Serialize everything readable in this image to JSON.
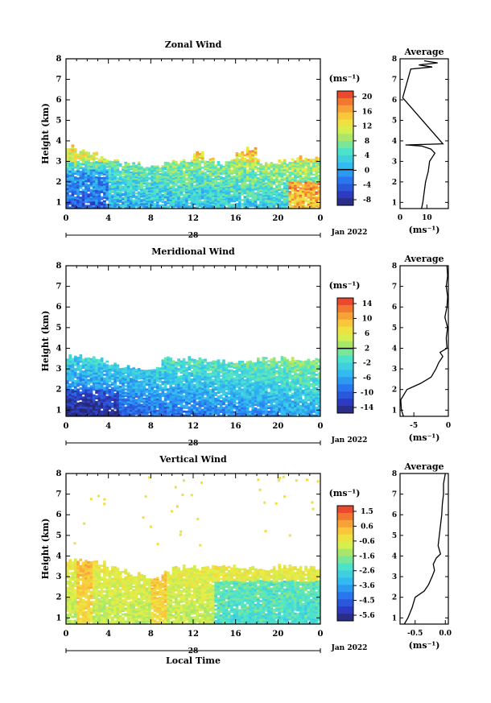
{
  "chart_data": [
    {
      "type": "heatmap",
      "title": "Zonal Wind",
      "ylabel": "Height (km)",
      "xlabel": "",
      "date_label": "Jan 2022",
      "day_label": "28",
      "xticks": [
        "0",
        "4",
        "8",
        "12",
        "16",
        "20",
        "0"
      ],
      "xlim": [
        0,
        24
      ],
      "ylim": [
        0.7,
        8
      ],
      "yticks": [
        "1",
        "2",
        "3",
        "4",
        "5",
        "6",
        "7",
        "8"
      ],
      "colorbar": {
        "unit": "(ms⁻¹)",
        "ticks": [
          "20",
          "16",
          "12",
          "8",
          "4",
          "0",
          "-4",
          "-8"
        ],
        "range": [
          -10,
          22
        ],
        "zero_line": 0
      },
      "field": {
        "cloud_top_profile_km": [
          3.7,
          3.5,
          3.4,
          3.2,
          3.0,
          2.9,
          2.9,
          2.8,
          2.8,
          2.9,
          3.0,
          3.0,
          3.4,
          3.1,
          2.9,
          3.0,
          3.4,
          3.6,
          3.0,
          3.0,
          3.0,
          3.1,
          3.2
        ],
        "value_min": -8,
        "value_max": 20
      },
      "average_profile": {
        "xticks": [
          "0",
          "10"
        ],
        "xlim": [
          0,
          18
        ],
        "xlabel": "(ms⁻¹)",
        "height_km": [
          0.7,
          1.0,
          1.5,
          2.0,
          2.5,
          3.0,
          3.2,
          3.4,
          3.6,
          3.75,
          3.8,
          3.85,
          6.1,
          7.5,
          7.6,
          7.7,
          7.8,
          7.9
        ],
        "speed": [
          8,
          8.5,
          9,
          9.5,
          10.5,
          11,
          12,
          13,
          11.5,
          8,
          2,
          16,
          1,
          4,
          12,
          7,
          14,
          9
        ]
      }
    },
    {
      "type": "heatmap",
      "title": "Meridional Wind",
      "ylabel": "Height (km)",
      "xlabel": "",
      "date_label": "Jan 2022",
      "day_label": "28",
      "xticks": [
        "0",
        "4",
        "8",
        "12",
        "16",
        "20",
        "0"
      ],
      "xlim": [
        0,
        24
      ],
      "ylim": [
        0.7,
        8
      ],
      "yticks": [
        "1",
        "2",
        "3",
        "4",
        "5",
        "6",
        "7",
        "8"
      ],
      "colorbar": {
        "unit": "(ms⁻¹)",
        "ticks": [
          "14",
          "10",
          "6",
          "2",
          "-2",
          "-6",
          "-10",
          "-14"
        ],
        "range": [
          -16,
          16
        ],
        "zero_line": 2
      },
      "field": {
        "cloud_top_profile_km": [
          3.6,
          3.6,
          3.5,
          3.5,
          3.3,
          3.1,
          3.0,
          2.9,
          3.1,
          3.5,
          3.4,
          3.5,
          3.5,
          3.4,
          3.4,
          3.3,
          3.3,
          3.3,
          3.5,
          3.5,
          3.5,
          3.5,
          3.5
        ],
        "value_min": -14,
        "value_max": 14
      },
      "average_profile": {
        "xticks": [
          "-5",
          "0"
        ],
        "xlim": [
          -7,
          0
        ],
        "xlabel": "(ms⁻¹)",
        "height_km": [
          0.7,
          1.0,
          1.5,
          2.0,
          2.3,
          2.6,
          3.0,
          3.3,
          3.6,
          3.8,
          4.0,
          4.5,
          5.0,
          5.5,
          6.0,
          6.5,
          7.0,
          7.5,
          8.0
        ],
        "speed": [
          -6.5,
          -6.8,
          -6.9,
          -6.0,
          -4.0,
          -2.5,
          -1.8,
          -1.4,
          -0.8,
          -1.2,
          -0.2,
          -0.3,
          -0.1,
          -0.5,
          -0.2,
          -0.1,
          -0.3,
          -0.1,
          -0.2
        ]
      }
    },
    {
      "type": "heatmap",
      "title": "Vertical Wind",
      "ylabel": "Height (km)",
      "xlabel": "Local Time",
      "date_label": "Jan 2022",
      "day_label": "28",
      "xticks": [
        "0",
        "4",
        "8",
        "12",
        "16",
        "20",
        "0"
      ],
      "xlim": [
        0,
        24
      ],
      "ylim": [
        0.7,
        8
      ],
      "yticks": [
        "1",
        "2",
        "3",
        "4",
        "5",
        "6",
        "7",
        "8"
      ],
      "colorbar": {
        "unit": "(ms⁻¹)",
        "ticks": [
          "1.5",
          "0.6",
          "-0.6",
          "-1.6",
          "-2.6",
          "-3.6",
          "-4.5",
          "-5.6"
        ],
        "range": [
          -6.0,
          2.0
        ],
        "zero_line": null
      },
      "field": {
        "cloud_top_profile_km": [
          3.8,
          3.8,
          3.8,
          3.7,
          3.4,
          3.3,
          3.1,
          3.0,
          2.9,
          3.2,
          3.4,
          3.5,
          3.5,
          3.5,
          3.5,
          3.5,
          3.5,
          3.4,
          3.4,
          3.4,
          3.5,
          3.5,
          3.4
        ],
        "value_min": -5.6,
        "value_max": 1.5
      },
      "average_profile": {
        "xticks": [
          "-0.5",
          "0.0"
        ],
        "xlim": [
          -0.75,
          0.05
        ],
        "xlabel": "(ms⁻¹)",
        "height_km": [
          0.7,
          1.0,
          1.5,
          2.0,
          2.3,
          2.6,
          3.0,
          3.3,
          3.6,
          3.9,
          4.1,
          4.5,
          5.0,
          5.5,
          6.0,
          6.5,
          7.0,
          7.5,
          8.0
        ],
        "speed": [
          -0.68,
          -0.62,
          -0.55,
          -0.5,
          -0.35,
          -0.28,
          -0.22,
          -0.18,
          -0.2,
          -0.15,
          -0.08,
          -0.12,
          -0.1,
          -0.08,
          -0.06,
          -0.05,
          -0.03,
          -0.03,
          0.0
        ]
      }
    }
  ]
}
